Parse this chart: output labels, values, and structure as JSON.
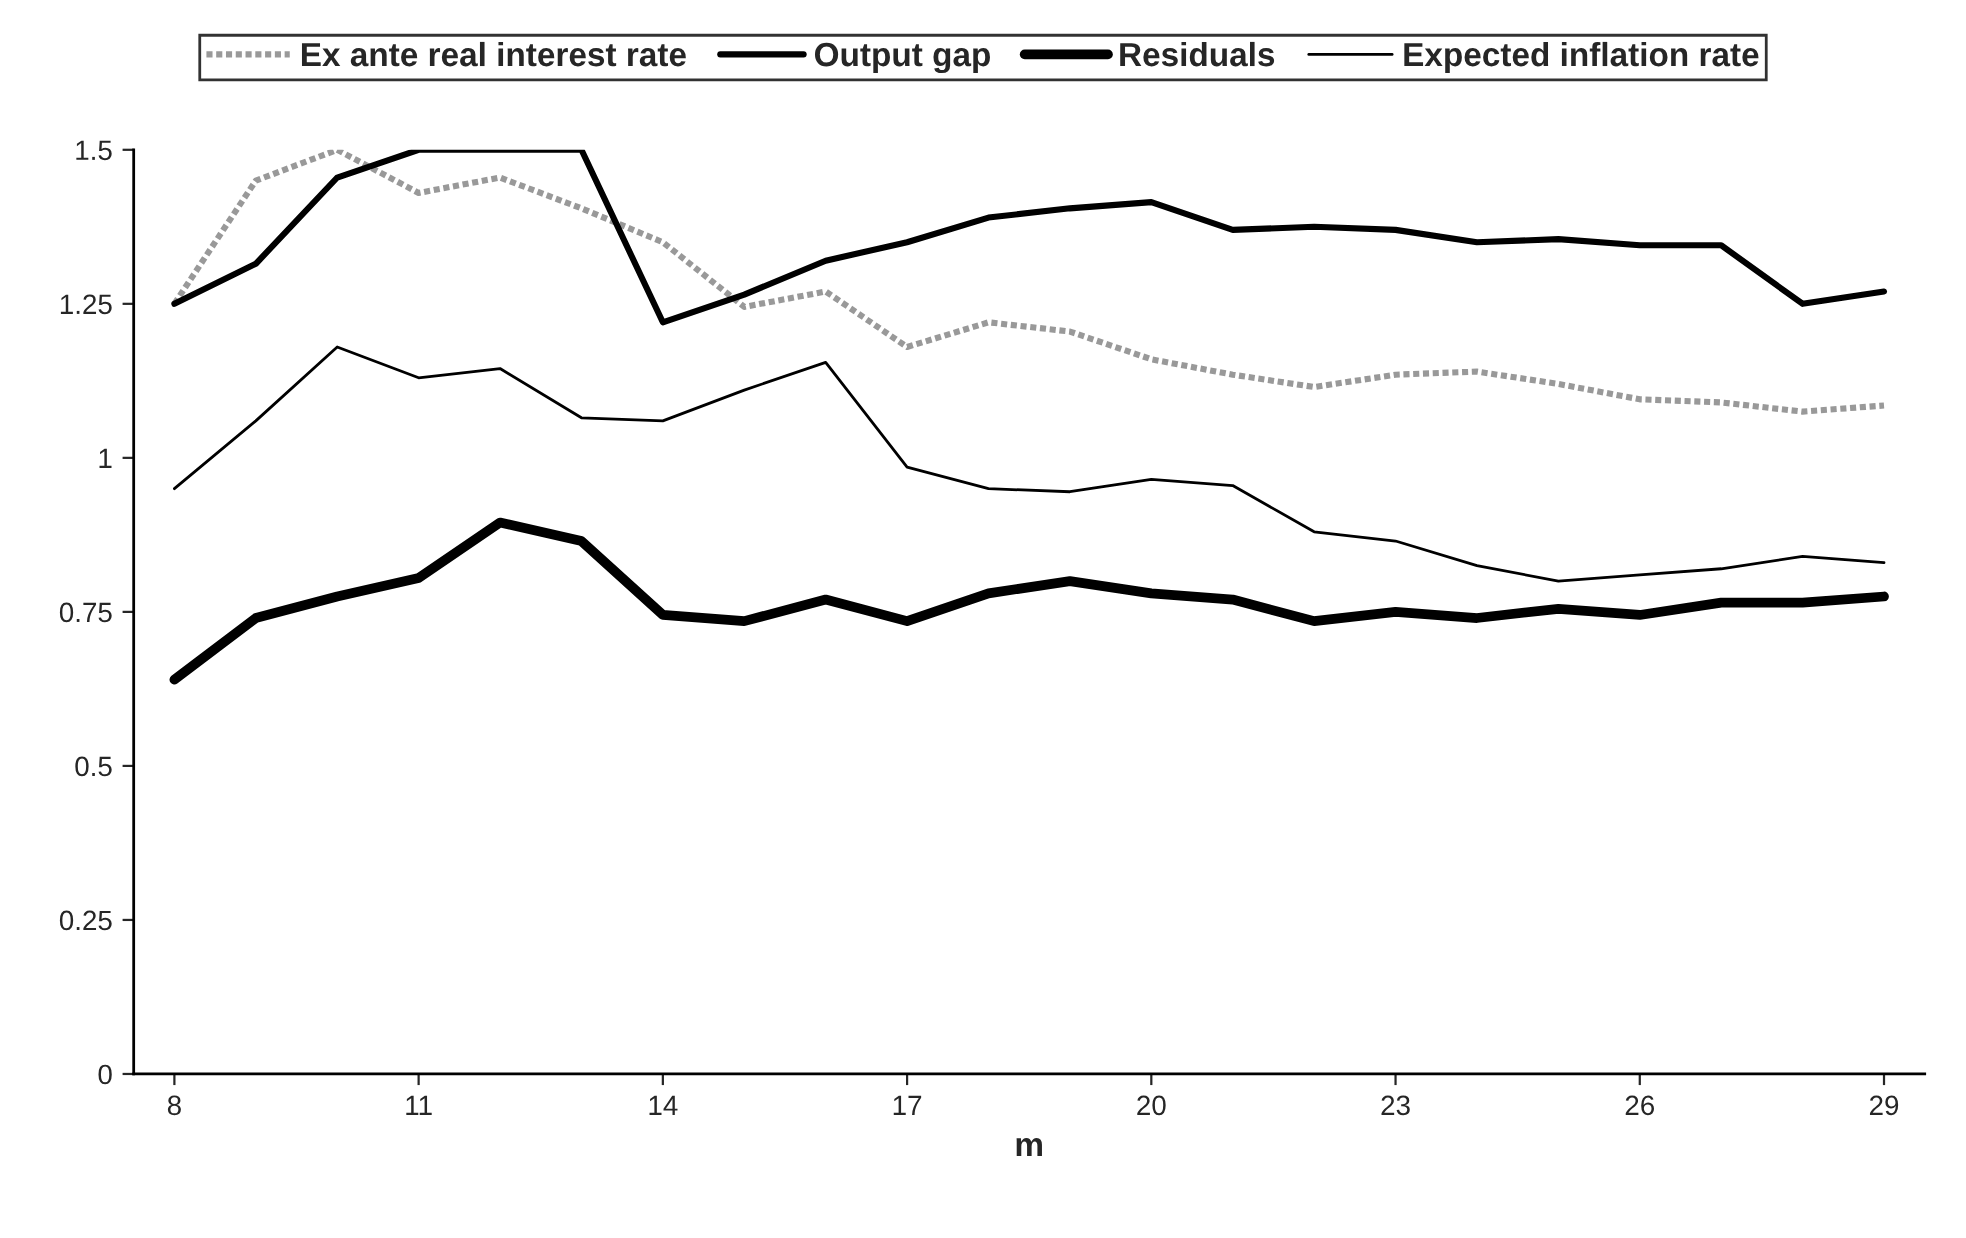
{
  "chart_data": {
    "type": "line",
    "xlabel": "m",
    "x": [
      8,
      9,
      10,
      11,
      12,
      13,
      14,
      15,
      16,
      17,
      18,
      19,
      20,
      21,
      22,
      23,
      24,
      25,
      26,
      27,
      28,
      29
    ],
    "xlim": [
      7.5,
      29.5
    ],
    "xticks": [
      8,
      11,
      14,
      17,
      20,
      23,
      26,
      29
    ],
    "ylim": [
      0,
      1.5
    ],
    "yticks": [
      0,
      0.25,
      0.5,
      0.75,
      1,
      1.25,
      1.5
    ],
    "grid": false,
    "legend": "top",
    "marker": "none",
    "series": [
      {
        "name": "Ex ante real interest rate",
        "color": "#999999",
        "line_style": "dotted",
        "values": [
          1.25,
          1.45,
          1.5,
          1.43,
          1.455,
          1.405,
          1.35,
          1.245,
          1.27,
          1.18,
          1.22,
          1.205,
          1.16,
          1.135,
          1.115,
          1.135,
          1.14,
          1.12,
          1.095,
          1.09,
          1.075,
          1.085
        ]
      },
      {
        "name": "Output gap",
        "color": "#000000",
        "line_style": "solid",
        "values": [
          1.25,
          1.315,
          1.455,
          1.5,
          1.5,
          1.5,
          1.22,
          1.265,
          1.32,
          1.35,
          1.39,
          1.405,
          1.415,
          1.37,
          1.375,
          1.37,
          1.35,
          1.355,
          1.345,
          1.345,
          1.25,
          1.27
        ]
      },
      {
        "name": "Residuals",
        "color": "#000000",
        "line_style": "solid",
        "values": [
          0.64,
          0.74,
          0.775,
          0.805,
          0.895,
          0.865,
          0.745,
          0.735,
          0.77,
          0.735,
          0.78,
          0.8,
          0.78,
          0.77,
          0.735,
          0.75,
          0.74,
          0.755,
          0.745,
          0.765,
          0.765,
          0.775
        ]
      },
      {
        "name": "Expected inflation rate",
        "color": "#000000",
        "line_style": "solid",
        "values": [
          0.95,
          1.06,
          1.18,
          1.13,
          1.145,
          1.065,
          1.06,
          1.11,
          1.155,
          0.985,
          0.95,
          0.945,
          0.965,
          0.955,
          0.88,
          0.865,
          0.825,
          0.8,
          0.81,
          0.82,
          0.84,
          0.83
        ]
      }
    ]
  }
}
